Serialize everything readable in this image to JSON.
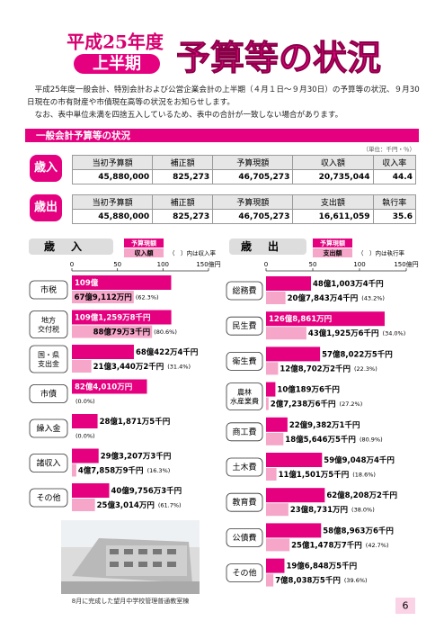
{
  "header": {
    "year": "平成25年度",
    "half": "上半期",
    "title": "予算等の状況"
  },
  "intro": [
    "平成25年度一般会計、特別会計および公営企業会計の上半期（４月１日～９月30日）の予算等の状況、９月30日現在の市有財産や市債現在高等の状況をお知らせします。",
    "なお、表中単位未満を四捨五入しているため、表中の合計が一致しない場合があります。"
  ],
  "section": {
    "title": "一般会計予算等の状況",
    "unit": "（単位：千円・％）"
  },
  "tables": [
    {
      "label": "歳入",
      "columns": [
        "当初予算額",
        "補正額",
        "予算現額",
        "収入額",
        "収入率"
      ],
      "row": [
        "45,880,000",
        "825,273",
        "46,705,273",
        "20,735,044",
        "44.4"
      ]
    },
    {
      "label": "歳出",
      "columns": [
        "当初予算額",
        "補正額",
        "予算現額",
        "支出額",
        "執行率"
      ],
      "row": [
        "45,880,000",
        "825,273",
        "46,705,273",
        "16,611,059",
        "35.6"
      ]
    }
  ],
  "chart_data": [
    {
      "type": "bar",
      "orientation": "horizontal",
      "title": "歳入",
      "note": "（　）内は収入率",
      "categories": [
        [
          "市税"
        ],
        [
          "地方",
          "交付税"
        ],
        [
          "国・県",
          "支出金"
        ],
        [
          "市債"
        ],
        [
          "繰入金"
        ],
        [
          "諸収入"
        ],
        [
          "その他"
        ]
      ],
      "series": [
        {
          "name": "予算現額",
          "color": "#e4007f",
          "values": [
            109,
            109.12598,
            68.04224,
            82.401,
            28.18715,
            29.32073,
            40.97563
          ],
          "value_labels": [
            "109億",
            "109億1,259万8千円",
            "68億422万4千円",
            "82億4,010万円",
            "28億1,871万5千円",
            "29億3,207万3千円",
            "40億9,756万3千円"
          ]
        },
        {
          "name": "収入額",
          "color": "#f5a6c9",
          "values": [
            67.9112,
            88.00793,
            21.34402,
            0,
            0,
            4.78589,
            25.3014
          ],
          "value_labels": [
            "67億9,112万円",
            "88億79万3千円",
            "21億3,440万2千円",
            null,
            null,
            "4億7,858万9千円",
            "25億3,014万円"
          ]
        }
      ],
      "rate_labels": [
        "(62.3%)",
        "(80.6%)",
        "(31.4%)",
        "(0.0%)",
        "(0.0%)",
        "(16.3%)",
        "(61.7%)"
      ],
      "xlim": [
        0,
        150
      ],
      "xticks": [
        0,
        50,
        100,
        {
          "value": 150,
          "label": "150億円"
        }
      ]
    },
    {
      "type": "bar",
      "orientation": "horizontal",
      "title": "歳出",
      "note": "（　）内は執行率",
      "categories": [
        [
          "総務費"
        ],
        [
          "民生費"
        ],
        [
          "衛生費"
        ],
        [
          "農林",
          "水産業費"
        ],
        [
          "商工費"
        ],
        [
          "土木費"
        ],
        [
          "教育費"
        ],
        [
          "公債費"
        ],
        [
          "その他"
        ]
      ],
      "series": [
        {
          "name": "予算現額",
          "color": "#e4007f",
          "values": [
            48.10034,
            126.8861,
            57.80225,
            10.01896,
            22.93821,
            59.90484,
            62.82082,
            58.89636,
            19.68485
          ],
          "value_labels": [
            "48億1,003万4千円",
            "126億8,861万円",
            "57億8,022万5千円",
            "10億189万6千円",
            "22億9,382万1千円",
            "59億9,048万4千円",
            "62億8,208万2千円",
            "58億8,963万6千円",
            "19億6,848万5千円"
          ]
        },
        {
          "name": "支出額",
          "color": "#f5a6c9",
          "values": [
            20.78434,
            43.19256,
            12.87022,
            2.72386,
            18.56465,
            11.15015,
            23.8731,
            25.14787,
            7.80385
          ],
          "value_labels": [
            "20億7,843万4千円",
            "43億1,925万6千円",
            "12億8,702万2千円",
            "2億7,238万6千円",
            "18億5,646万5千円",
            "11億1,501万5千円",
            "23億8,731万円",
            "25億1,478万7千円",
            "7億8,038万5千円"
          ]
        }
      ],
      "rate_labels": [
        "(43.2%)",
        "(34.0%)",
        "(22.3%)",
        "(27.2%)",
        "(80.9%)",
        "(18.6%)",
        "(38.0%)",
        "(42.7%)",
        "(39.6%)"
      ],
      "xlim": [
        0,
        150
      ],
      "xticks": [
        0,
        50,
        100,
        {
          "value": 150,
          "label": "150億円"
        }
      ]
    }
  ],
  "photo_caption": "8月に完成した望月中学校管理普通教室棟",
  "page_number": "6"
}
